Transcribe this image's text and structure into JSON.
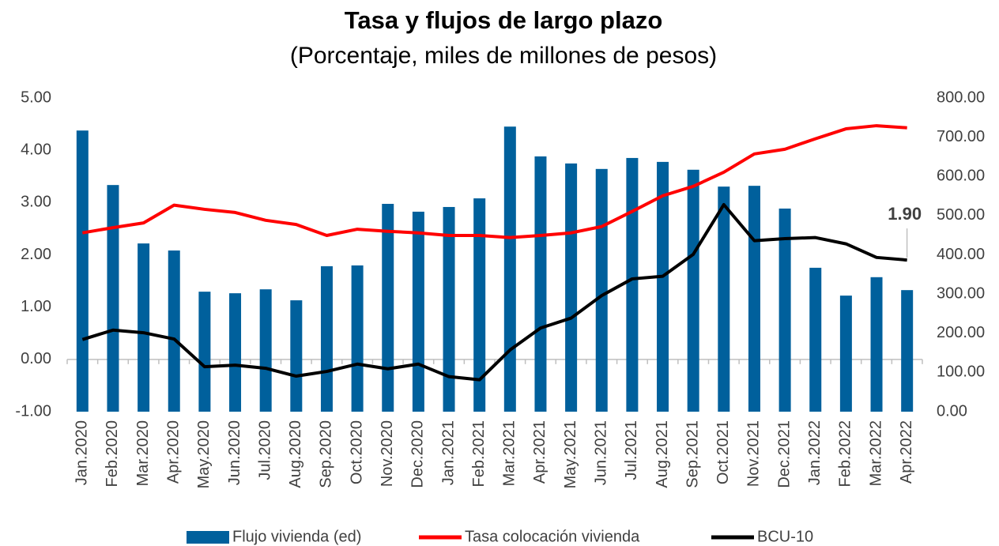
{
  "chart_data": {
    "type": "combo",
    "title": "Tasa y flujos de largo plazo",
    "subtitle": "(Porcentaje, miles de millones de pesos)",
    "categories": [
      "Jan.2020",
      "Feb.2020",
      "Mar.2020",
      "Apr.2020",
      "May.2020",
      "Jun.2020",
      "Jul.2020",
      "Aug.2020",
      "Sep.2020",
      "Oct.2020",
      "Nov.2020",
      "Dec.2020",
      "Jan.2021",
      "Feb.2021",
      "Mar.2021",
      "Apr.2021",
      "May.2021",
      "Jun.2021",
      "Jul.2021",
      "Aug.2021",
      "Sep.2021",
      "Oct.2021",
      "Nov.2021",
      "Dec.2021",
      "Jan.2022",
      "Feb.2022",
      "Mar.2022",
      "Apr.2022"
    ],
    "series": [
      {
        "name": "Flujo vivienda (ed)",
        "type": "bar",
        "axis": "y2",
        "color": "#00609c",
        "values": [
          717,
          578,
          429,
          411,
          306,
          302,
          312,
          284,
          371,
          373,
          530,
          510,
          522,
          544,
          727,
          651,
          633,
          619,
          647,
          637,
          617,
          574,
          576,
          518,
          367,
          296,
          343,
          310
        ]
      },
      {
        "name": "Tasa colocación vivienda",
        "type": "line",
        "color": "#ff0000",
        "values": [
          2.42,
          2.52,
          2.61,
          2.95,
          2.87,
          2.81,
          2.66,
          2.58,
          2.37,
          2.49,
          2.45,
          2.42,
          2.37,
          2.37,
          2.33,
          2.37,
          2.42,
          2.54,
          2.83,
          3.13,
          3.31,
          3.58,
          3.93,
          4.02,
          4.22,
          4.41,
          4.47,
          4.43
        ]
      },
      {
        "name": "BCU-10",
        "type": "line",
        "color": "#000000",
        "values": [
          0.38,
          0.56,
          0.51,
          0.39,
          -0.14,
          -0.11,
          -0.17,
          -0.32,
          -0.23,
          -0.09,
          -0.18,
          -0.09,
          -0.33,
          -0.39,
          0.18,
          0.6,
          0.79,
          1.22,
          1.54,
          1.59,
          2.01,
          2.96,
          2.27,
          2.31,
          2.33,
          2.21,
          1.95,
          1.9
        ],
        "value_labels": [
          null,
          null,
          null,
          null,
          null,
          null,
          null,
          null,
          null,
          null,
          null,
          null,
          null,
          null,
          null,
          null,
          null,
          null,
          null,
          null,
          null,
          null,
          null,
          null,
          null,
          null,
          null,
          "1.90"
        ]
      }
    ],
    "ylim": [
      -1,
      5
    ],
    "yticks": [
      {
        "value": -1,
        "label": "-1.00"
      },
      {
        "value": 0,
        "label": "0.00"
      },
      {
        "value": 1,
        "label": "1.00"
      },
      {
        "value": 2,
        "label": "2.00"
      },
      {
        "value": 3,
        "label": "3.00"
      },
      {
        "value": 4,
        "label": "4.00"
      },
      {
        "value": 5,
        "label": "5.00"
      }
    ],
    "y2lim": [
      0,
      800
    ],
    "y2ticks": [
      {
        "value": 0,
        "label": "0.00"
      },
      {
        "value": 100,
        "label": "100.00"
      },
      {
        "value": 200,
        "label": "200.00"
      },
      {
        "value": 300,
        "label": "300.00"
      },
      {
        "value": 400,
        "label": "400.00"
      },
      {
        "value": 500,
        "label": "500.00"
      },
      {
        "value": 600,
        "label": "600.00"
      },
      {
        "value": 700,
        "label": "700.00"
      },
      {
        "value": 800,
        "label": "800.00"
      }
    ],
    "grid": false,
    "legend": "bottom"
  }
}
